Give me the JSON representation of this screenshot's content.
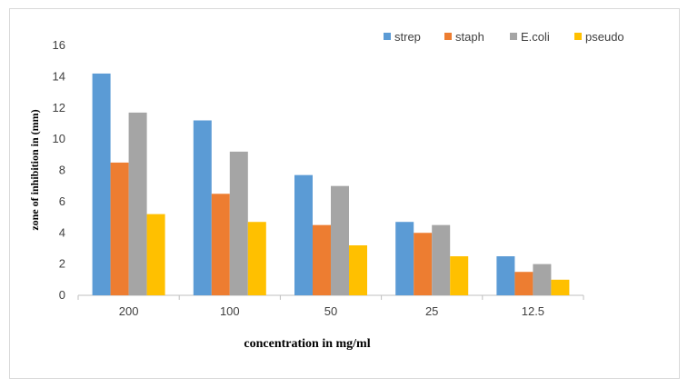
{
  "chart_data": {
    "type": "bar",
    "title": "",
    "xlabel": "concentration in mg/ml",
    "ylabel": "zone of inhibition in (mm)",
    "ylim": [
      0,
      16
    ],
    "yticks": [
      0,
      2,
      4,
      6,
      8,
      10,
      12,
      14,
      16
    ],
    "categories": [
      "200",
      "100",
      "50",
      "25",
      "12.5"
    ],
    "legend_position": "top-right",
    "grid": false,
    "series": [
      {
        "name": "strep",
        "color": "#5b9bd5",
        "values": [
          14.2,
          11.2,
          7.7,
          4.7,
          2.5
        ]
      },
      {
        "name": "staph",
        "color": "#ed7d31",
        "values": [
          8.5,
          6.5,
          4.5,
          4.0,
          1.5
        ]
      },
      {
        "name": "E.coli",
        "color": "#a5a5a5",
        "values": [
          11.7,
          9.2,
          7.0,
          4.5,
          2.0
        ]
      },
      {
        "name": "pseudo",
        "color": "#ffc000",
        "values": [
          5.2,
          4.7,
          3.2,
          2.5,
          1.0
        ]
      }
    ]
  }
}
